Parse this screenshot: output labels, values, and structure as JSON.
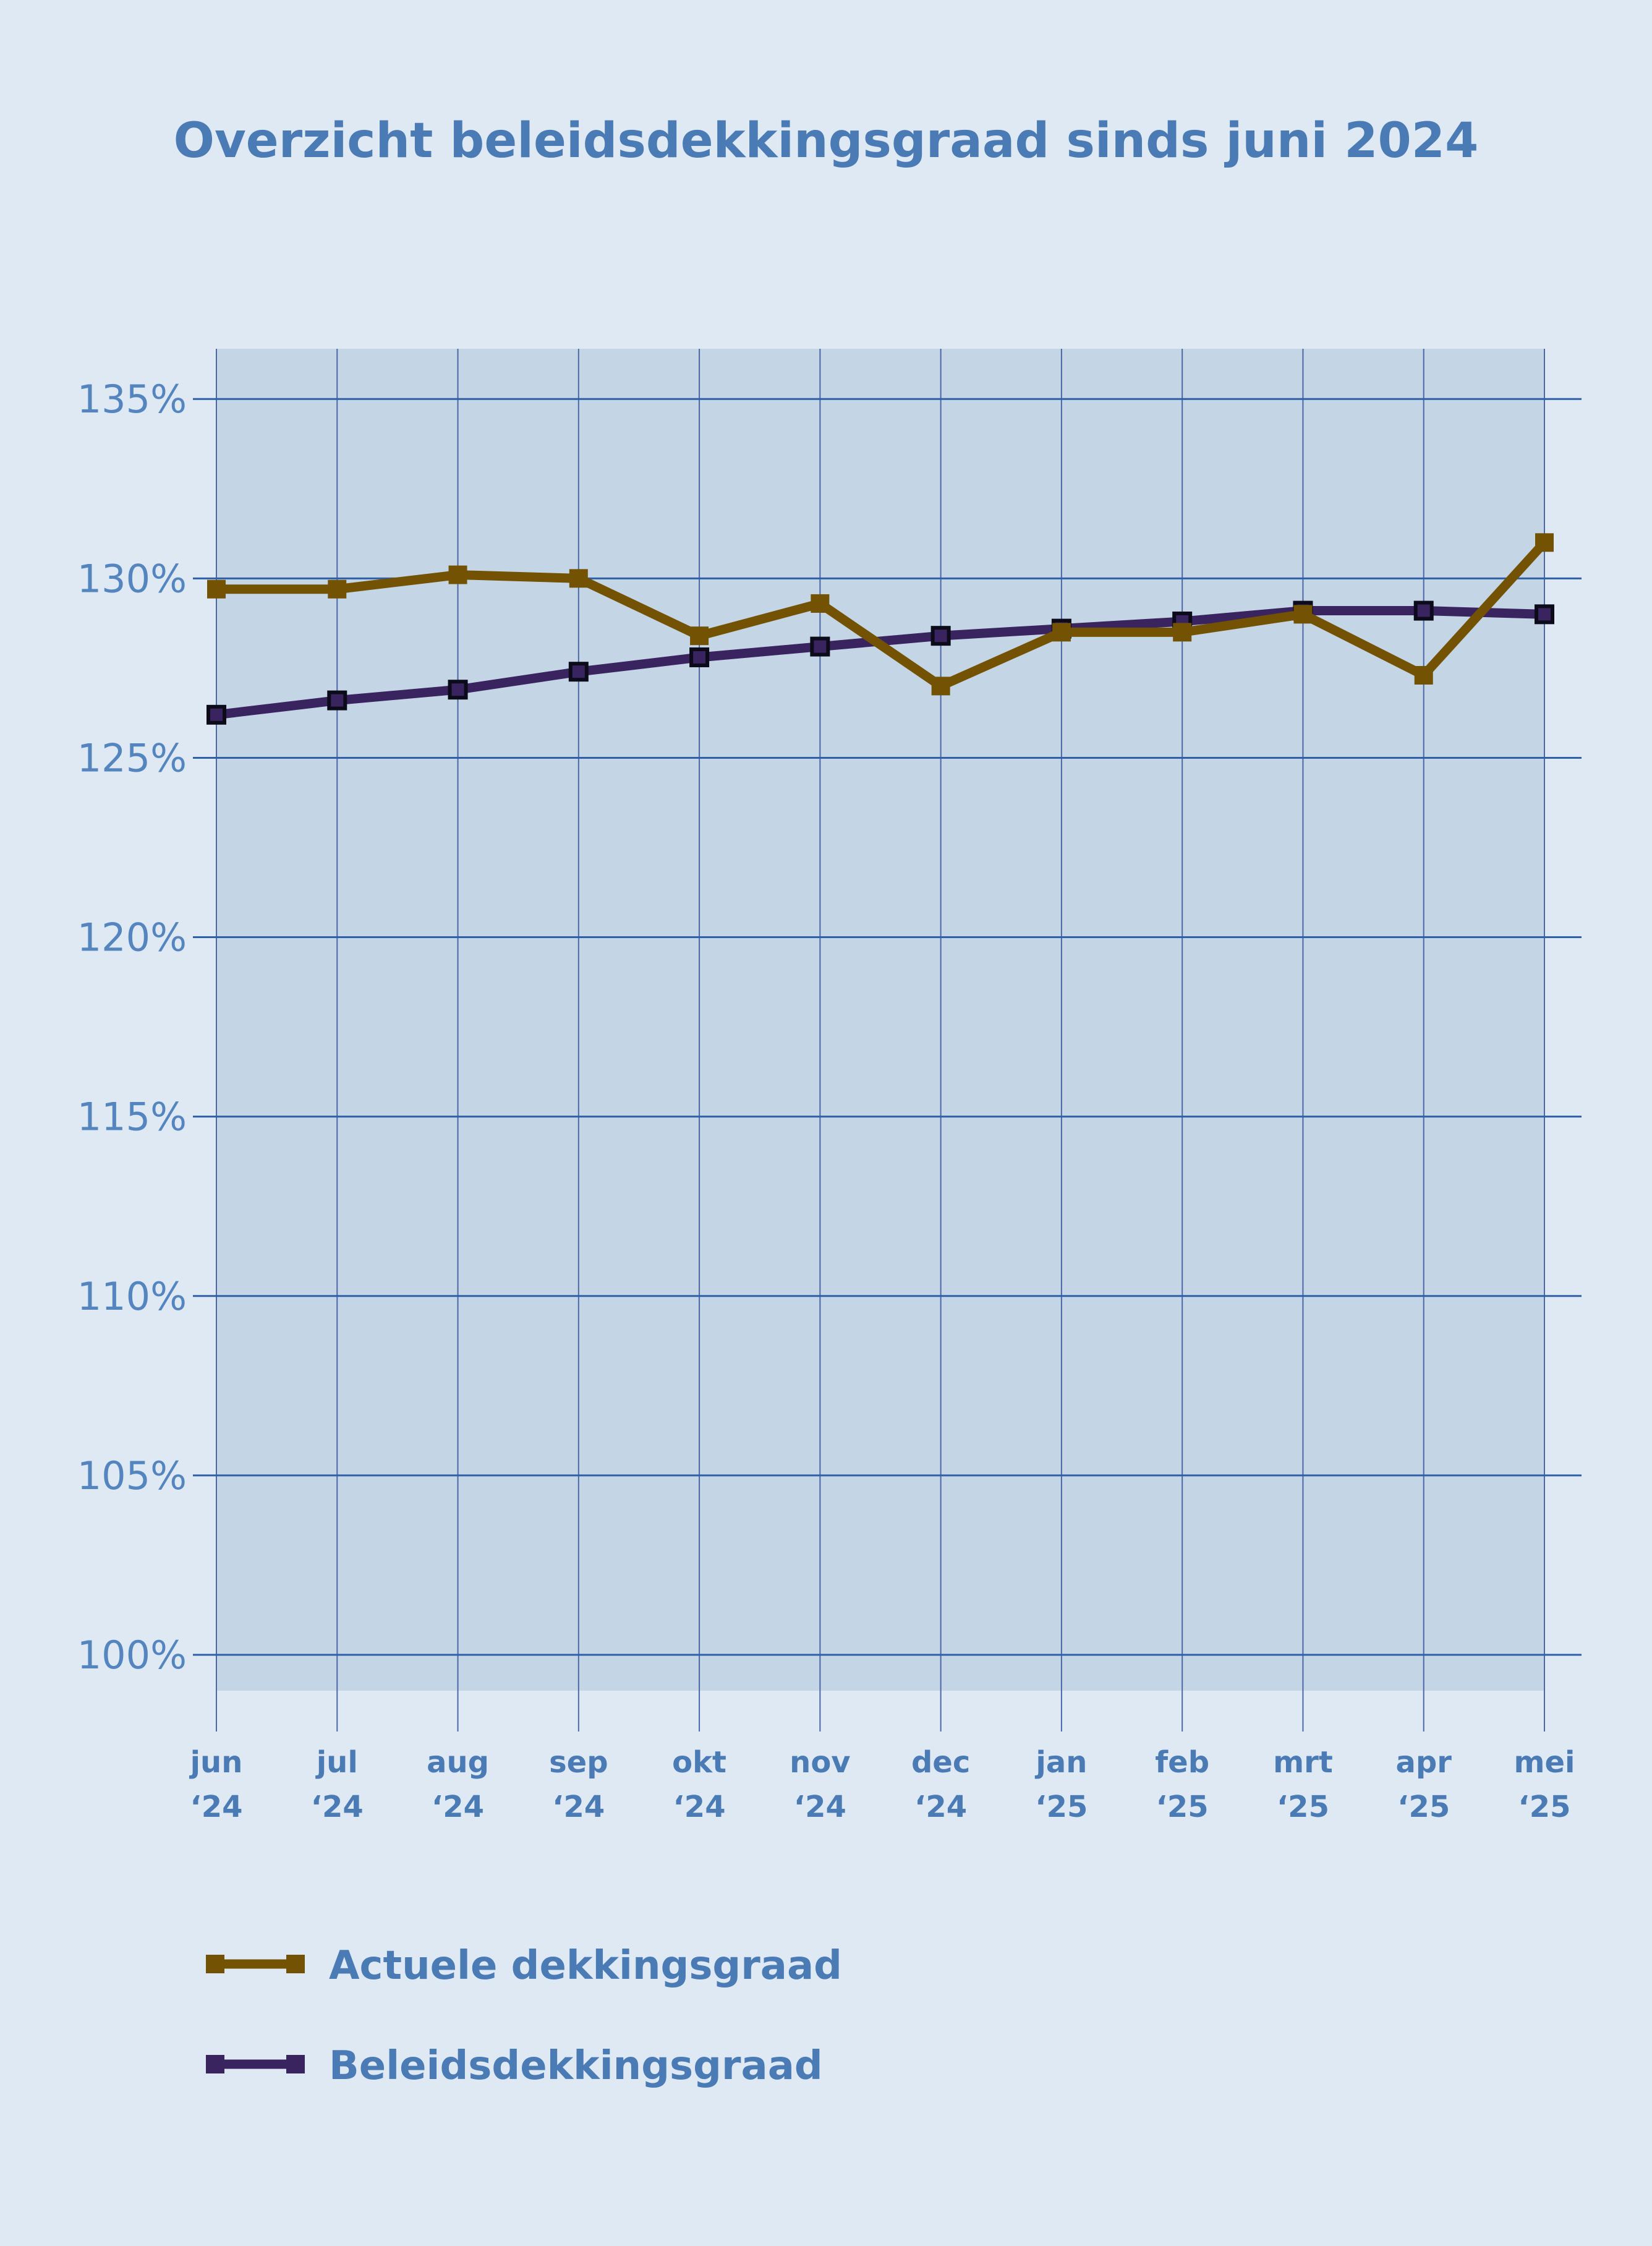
{
  "chart_data": {
    "type": "line",
    "title": "Overzicht beleidsdekkingsgraad sinds juni 2024",
    "categories": [
      [
        "jun",
        "‘24"
      ],
      [
        "jul",
        "‘24"
      ],
      [
        "aug",
        "‘24"
      ],
      [
        "sep",
        "‘24"
      ],
      [
        "okt",
        "‘24"
      ],
      [
        "nov",
        "‘24"
      ],
      [
        "dec",
        "‘24"
      ],
      [
        "jan",
        "‘25"
      ],
      [
        "feb",
        "‘25"
      ],
      [
        "mrt",
        "‘25"
      ],
      [
        "apr",
        "‘25"
      ],
      [
        "mei",
        "‘25"
      ]
    ],
    "yticks": [
      "100%",
      "105%",
      "110%",
      "115%",
      "120%",
      "125%",
      "130%",
      "135%"
    ],
    "ytick_values": [
      100,
      105,
      110,
      115,
      120,
      125,
      130,
      135
    ],
    "ylim": [
      99,
      136.4
    ],
    "grid": true,
    "legend_position": "bottom-left",
    "series": [
      {
        "name": "Actuele dekkingsgraad",
        "color": "#735203",
        "values": [
          129.7,
          129.7,
          130.1,
          130.0,
          128.4,
          129.3,
          127.0,
          128.5,
          128.5,
          129.0,
          127.3,
          131.0
        ]
      },
      {
        "name": "Beleidsdekkingsgraad",
        "color": "#3a2460",
        "values": [
          126.2,
          126.6,
          126.9,
          127.4,
          127.8,
          128.1,
          128.4,
          128.6,
          128.8,
          129.1,
          129.1,
          129.0
        ]
      }
    ]
  }
}
